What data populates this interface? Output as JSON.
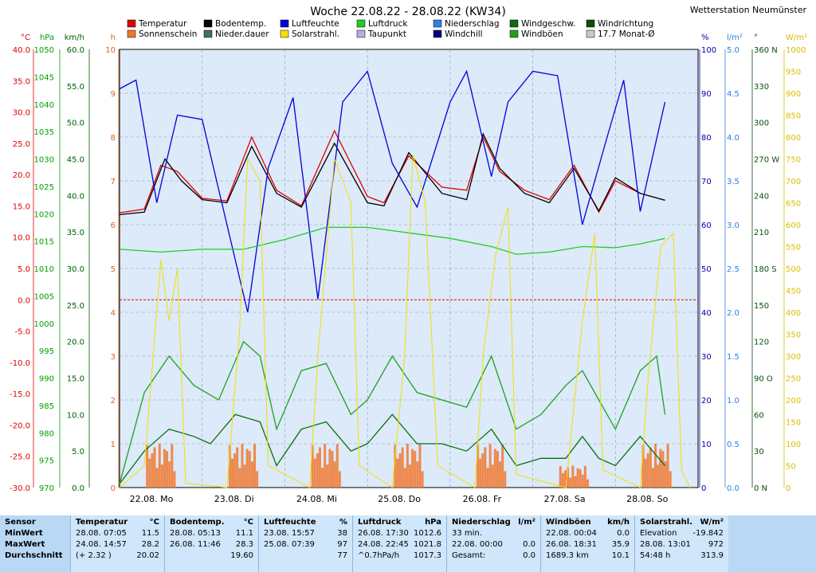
{
  "chart_data": {
    "type": "line",
    "title": "Woche 22.08.22 - 28.08.22 (KW34)",
    "station": "Wetterstation Neumünster",
    "x_labels": [
      "22.08. Mo",
      "23.08. Di",
      "24.08. Mi",
      "25.08. Do",
      "26.08. Fr",
      "27.08. Sa",
      "28.08. So"
    ],
    "legend": [
      {
        "name": "Temperatur",
        "color": "#e00000"
      },
      {
        "name": "Bodentemp.",
        "color": "#000000"
      },
      {
        "name": "Luftfeuchte",
        "color": "#0000dd"
      },
      {
        "name": "Luftdruck",
        "color": "#22cc22"
      },
      {
        "name": "Niederschlag",
        "color": "#2f80e0"
      },
      {
        "name": "Windgeschw.",
        "color": "#0b6e0b"
      },
      {
        "name": "Windrichtung",
        "color": "#0b4f0b"
      },
      {
        "name": "Sonnenschein",
        "color": "#f07830"
      },
      {
        "name": "Nieder.dauer",
        "color": "#3a7070"
      },
      {
        "name": "Solarstrahl.",
        "color": "#f2e000"
      },
      {
        "name": "Taupunkt",
        "color": "#b0b0e8"
      },
      {
        "name": "Windchill",
        "color": "#000080"
      },
      {
        "name": "Windböen",
        "color": "#20a020"
      },
      {
        "name": "17.7 Monat-Ø",
        "color": "#c8c8c8"
      }
    ],
    "axes_left": [
      {
        "unit": "°C",
        "color": "#e00000",
        "ticks": [
          "40.0",
          "35.0",
          "30.0",
          "25.0",
          "20.0",
          "15.0",
          "10.0",
          "5.0",
          "0.0",
          "-5.0",
          "-10.0",
          "-15.0",
          "-20.0",
          "-25.0",
          "-30.0"
        ]
      },
      {
        "unit": "hPa",
        "color": "#00a000",
        "ticks": [
          "1050",
          "1045",
          "1040",
          "1035",
          "1030",
          "1025",
          "1020",
          "1015",
          "1010",
          "1005",
          "1000",
          "995",
          "990",
          "985",
          "980",
          "975",
          "970"
        ]
      },
      {
        "unit": "km/h",
        "color": "#006000",
        "ticks": [
          "60.0",
          "55.0",
          "50.0",
          "45.0",
          "40.0",
          "35.0",
          "30.0",
          "25.0",
          "20.0",
          "15.0",
          "10.0",
          "5.0",
          "0.0"
        ]
      },
      {
        "unit": "h",
        "color": "#e06020",
        "ticks": [
          "10",
          "9",
          "8",
          "7",
          "6",
          "5",
          "4",
          "3",
          "2",
          "1",
          "0"
        ]
      }
    ],
    "axes_right": [
      {
        "unit": "%",
        "color": "#0000aa",
        "ticks": [
          "100",
          "90",
          "80",
          "70",
          "60",
          "50",
          "40",
          "30",
          "20",
          "10",
          "0"
        ]
      },
      {
        "unit": "l/m²",
        "color": "#2f80e0",
        "ticks": [
          "5.0",
          "4.5",
          "4.0",
          "3.5",
          "3.0",
          "2.5",
          "2.0",
          "1.5",
          "1.0",
          "0.5",
          "0.0"
        ]
      },
      {
        "unit": "°",
        "color": "#0b4f0b",
        "ticks": [
          "360 N",
          "330",
          "300",
          "270 W",
          "240",
          "210",
          "180 S",
          "150",
          "120",
          "90 O",
          "60",
          "30",
          "0 N"
        ]
      },
      {
        "unit": "W/m²",
        "color": "#d8c000",
        "ticks": [
          "1000",
          "950",
          "900",
          "850",
          "800",
          "750",
          "700",
          "650",
          "600",
          "550",
          "500",
          "450",
          "400",
          "350",
          "300",
          "250",
          "200",
          "150",
          "100",
          "50",
          "0"
        ]
      }
    ],
    "series": [
      {
        "name": "Temperatur",
        "unit": "°C",
        "points": [
          [
            0,
            13.9
          ],
          [
            0.3,
            14.5
          ],
          [
            0.5,
            21.5
          ],
          [
            0.7,
            20.5
          ],
          [
            1.0,
            16.2
          ],
          [
            1.3,
            15.8
          ],
          [
            1.6,
            26.0
          ],
          [
            1.9,
            17.5
          ],
          [
            2.2,
            15.0
          ],
          [
            2.6,
            27.0
          ],
          [
            3.0,
            16.5
          ],
          [
            3.2,
            15.5
          ],
          [
            3.5,
            23.0
          ],
          [
            3.9,
            18.0
          ],
          [
            4.2,
            17.5
          ],
          [
            4.4,
            26.0
          ],
          [
            4.6,
            20.5
          ],
          [
            4.9,
            17.5
          ],
          [
            5.2,
            16.0
          ],
          [
            5.5,
            21.5
          ],
          [
            5.8,
            14.0
          ],
          [
            6.0,
            19.0
          ],
          [
            6.3,
            17.0
          ],
          [
            6.6,
            15.9
          ]
        ]
      },
      {
        "name": "Bodentemp.",
        "unit": "°C",
        "points": [
          [
            0,
            13.6
          ],
          [
            0.3,
            14.0
          ],
          [
            0.55,
            22.5
          ],
          [
            0.75,
            19.0
          ],
          [
            1.0,
            16.0
          ],
          [
            1.3,
            15.5
          ],
          [
            1.6,
            24.5
          ],
          [
            1.9,
            17.0
          ],
          [
            2.2,
            14.8
          ],
          [
            2.6,
            25.0
          ],
          [
            3.0,
            15.5
          ],
          [
            3.2,
            15.0
          ],
          [
            3.5,
            23.5
          ],
          [
            3.9,
            17.0
          ],
          [
            4.2,
            16.0
          ],
          [
            4.4,
            26.5
          ],
          [
            4.6,
            21.0
          ],
          [
            4.9,
            17.0
          ],
          [
            5.2,
            15.5
          ],
          [
            5.5,
            21.0
          ],
          [
            5.8,
            14.2
          ],
          [
            6.0,
            19.5
          ],
          [
            6.3,
            17.0
          ],
          [
            6.6,
            15.9
          ]
        ]
      },
      {
        "name": "Luftfeuchte",
        "unit": "%",
        "points": [
          [
            0,
            91
          ],
          [
            0.2,
            93
          ],
          [
            0.45,
            65
          ],
          [
            0.7,
            85
          ],
          [
            1.0,
            84
          ],
          [
            1.3,
            60
          ],
          [
            1.55,
            40
          ],
          [
            1.8,
            73
          ],
          [
            2.1,
            89
          ],
          [
            2.4,
            43
          ],
          [
            2.7,
            88
          ],
          [
            3.0,
            95
          ],
          [
            3.3,
            74
          ],
          [
            3.6,
            64
          ],
          [
            4.0,
            88
          ],
          [
            4.2,
            95
          ],
          [
            4.5,
            71
          ],
          [
            4.7,
            88
          ],
          [
            5.0,
            95
          ],
          [
            5.3,
            94
          ],
          [
            5.6,
            60
          ],
          [
            5.9,
            80
          ],
          [
            6.1,
            93
          ],
          [
            6.3,
            63
          ],
          [
            6.6,
            88
          ]
        ]
      },
      {
        "name": "Luftdruck",
        "unit": "hPa",
        "points": [
          [
            0,
            1013.5
          ],
          [
            0.5,
            1013
          ],
          [
            1.0,
            1013.5
          ],
          [
            1.5,
            1013.5
          ],
          [
            2.0,
            1015.3
          ],
          [
            2.5,
            1017.5
          ],
          [
            3.0,
            1017.5
          ],
          [
            3.5,
            1016.5
          ],
          [
            4.0,
            1015.5
          ],
          [
            4.5,
            1014.0
          ],
          [
            4.8,
            1012.6
          ],
          [
            5.2,
            1013.0
          ],
          [
            5.6,
            1014.0
          ],
          [
            6.0,
            1013.8
          ],
          [
            6.3,
            1014.5
          ],
          [
            6.6,
            1015.5
          ]
        ]
      },
      {
        "name": "Windgeschw.",
        "unit": "km/h",
        "points": [
          [
            0,
            0.5
          ],
          [
            0.3,
            5
          ],
          [
            0.6,
            8
          ],
          [
            0.9,
            7
          ],
          [
            1.1,
            6
          ],
          [
            1.4,
            10
          ],
          [
            1.7,
            9
          ],
          [
            1.9,
            3
          ],
          [
            2.2,
            8
          ],
          [
            2.5,
            9
          ],
          [
            2.8,
            5
          ],
          [
            3.0,
            6
          ],
          [
            3.3,
            10
          ],
          [
            3.6,
            6
          ],
          [
            3.9,
            6
          ],
          [
            4.2,
            5
          ],
          [
            4.5,
            8
          ],
          [
            4.8,
            3
          ],
          [
            5.1,
            4
          ],
          [
            5.4,
            4
          ],
          [
            5.6,
            7
          ],
          [
            5.8,
            4
          ],
          [
            6.0,
            3
          ],
          [
            6.3,
            7
          ],
          [
            6.6,
            3
          ]
        ]
      },
      {
        "name": "Windböen",
        "unit": "km/h",
        "points": [
          [
            0,
            0.5
          ],
          [
            0.3,
            13
          ],
          [
            0.6,
            18
          ],
          [
            0.9,
            14
          ],
          [
            1.2,
            12
          ],
          [
            1.5,
            20
          ],
          [
            1.7,
            18
          ],
          [
            1.9,
            8
          ],
          [
            2.2,
            16
          ],
          [
            2.5,
            17
          ],
          [
            2.8,
            10
          ],
          [
            3.0,
            12
          ],
          [
            3.3,
            18
          ],
          [
            3.6,
            13
          ],
          [
            3.9,
            12
          ],
          [
            4.2,
            11
          ],
          [
            4.5,
            18
          ],
          [
            4.8,
            8
          ],
          [
            5.1,
            10
          ],
          [
            5.4,
            14
          ],
          [
            5.6,
            16
          ],
          [
            5.8,
            12
          ],
          [
            6.0,
            8
          ],
          [
            6.3,
            16
          ],
          [
            6.5,
            18
          ],
          [
            6.6,
            10
          ]
        ]
      },
      {
        "name": "Solarstrahl.",
        "unit": "W/m²",
        "points": [
          [
            0,
            0
          ],
          [
            0.3,
            50
          ],
          [
            0.5,
            520
          ],
          [
            0.6,
            380
          ],
          [
            0.7,
            500
          ],
          [
            0.8,
            10
          ],
          [
            1.3,
            0
          ],
          [
            1.45,
            350
          ],
          [
            1.55,
            750
          ],
          [
            1.7,
            700
          ],
          [
            1.8,
            50
          ],
          [
            2.3,
            0
          ],
          [
            2.4,
            300
          ],
          [
            2.6,
            750
          ],
          [
            2.8,
            650
          ],
          [
            2.9,
            50
          ],
          [
            3.3,
            0
          ],
          [
            3.45,
            300
          ],
          [
            3.55,
            760
          ],
          [
            3.7,
            650
          ],
          [
            3.85,
            50
          ],
          [
            4.3,
            0
          ],
          [
            4.4,
            300
          ],
          [
            4.55,
            530
          ],
          [
            4.7,
            640
          ],
          [
            4.8,
            30
          ],
          [
            5.4,
            0
          ],
          [
            5.6,
            380
          ],
          [
            5.75,
            580
          ],
          [
            5.85,
            40
          ],
          [
            6.3,
            0
          ],
          [
            6.4,
            260
          ],
          [
            6.55,
            550
          ],
          [
            6.7,
            580
          ],
          [
            6.8,
            40
          ],
          [
            6.9,
            0
          ]
        ]
      }
    ],
    "sunshine_bars_note": "Sonnenschein shown as orange bars, 0..1 h per interval",
    "reference_lines": [
      {
        "name": "0°C",
        "value": 0,
        "color": "#e00000"
      }
    ],
    "x_range": [
      0,
      7
    ],
    "y_ranges": {
      "temp": [
        -30,
        40
      ],
      "pressure": [
        970,
        1050
      ],
      "wind": [
        0,
        60
      ],
      "hum": [
        0,
        100
      ],
      "solar": [
        0,
        1000
      ]
    }
  },
  "table": {
    "row_labels": [
      "Sensor",
      "MinWert",
      "MaxWert",
      "Durchschnitt"
    ],
    "columns": [
      {
        "title": "Temperatur",
        "unit": "°C",
        "rows": [
          [
            "28.08.  07:05",
            "11.5"
          ],
          [
            "24.08.  14:57",
            "28.2"
          ],
          [
            "(+ 2.32 )",
            "20.02"
          ]
        ]
      },
      {
        "title": "Bodentemp.",
        "unit": "°C",
        "rows": [
          [
            "28.08.  05:13",
            "11.1"
          ],
          [
            "26.08.  11:46",
            "28.3"
          ],
          [
            "",
            "19.60"
          ]
        ]
      },
      {
        "title": "Luftfeuchte",
        "unit": "%",
        "rows": [
          [
            "23.08.  15:57",
            "38"
          ],
          [
            "25.08.  07:39",
            "97"
          ],
          [
            "",
            "77"
          ]
        ]
      },
      {
        "title": "Luftdruck",
        "unit": "hPa",
        "rows": [
          [
            "26.08.  17:30",
            "1012.6"
          ],
          [
            "24.08.  22:45",
            "1021.8"
          ],
          [
            "^0.7hPa/h",
            "1017.3"
          ]
        ]
      },
      {
        "title": "Niederschlag",
        "unit": "l/m²",
        "rows": [
          [
            "33 min.",
            ""
          ],
          [
            "22.08.  00:00",
            "0.0"
          ],
          [
            "Gesamt:",
            "0.0"
          ]
        ]
      },
      {
        "title": "Windböen",
        "unit": "km/h",
        "rows": [
          [
            "22.08.  00:04",
            "0.0"
          ],
          [
            "26.08.  18:31",
            "35.9"
          ],
          [
            "1689.3 km",
            "10.1"
          ]
        ]
      },
      {
        "title": "Solarstrahl.",
        "unit": "W/m²",
        "rows": [
          [
            "Elevation",
            "-19.842"
          ],
          [
            "28.08.  13:01",
            "972"
          ],
          [
            "54:48 h",
            "313.9"
          ]
        ]
      }
    ]
  }
}
